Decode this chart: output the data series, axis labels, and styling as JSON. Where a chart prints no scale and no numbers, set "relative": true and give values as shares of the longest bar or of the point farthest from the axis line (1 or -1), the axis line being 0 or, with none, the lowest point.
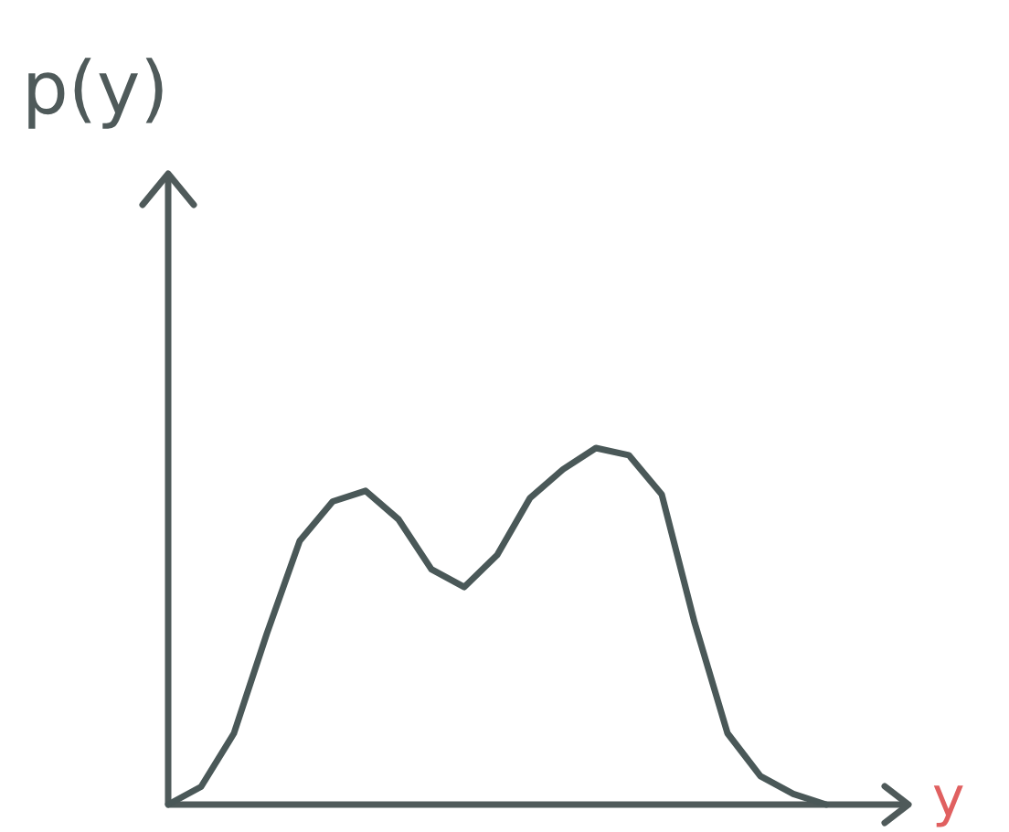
{
  "chart_data": {
    "type": "line",
    "relative": true,
    "ylabel": "p(y)",
    "xlabel": "y",
    "line_style": "solid",
    "categories": [
      null,
      null,
      null,
      null,
      null,
      null,
      null,
      null,
      null,
      null,
      null,
      null,
      null,
      null,
      null,
      null,
      null,
      null,
      null,
      null,
      null
    ],
    "series": [
      {
        "color": "#4a5858",
        "values": [
          0,
          0.05,
          0.2,
          0.48,
          0.74,
          0.85,
          0.88,
          0.8,
          0.66,
          0.61,
          0.7,
          0.86,
          0.94,
          1,
          0.98,
          0.87,
          0.51,
          0.2,
          0.08,
          0.03,
          0
        ]
      }
    ]
  }
}
